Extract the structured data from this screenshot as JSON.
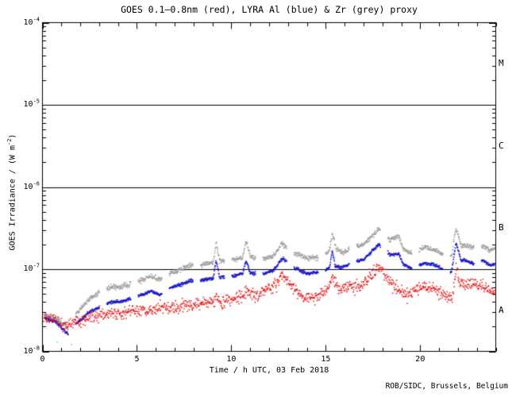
{
  "chart_data": {
    "type": "scatter",
    "title": "GOES 0.1–0.8nm (red), LYRA Al (blue) & Zr (grey) proxy",
    "xlabel": "Time / h UTC, 03 Feb 2018",
    "ylabel": {
      "pre": "GOES Irradiance / (W m",
      "sup": "-2",
      "post": ")"
    },
    "footer": "ROB/SIDC, Brussels, Belgium",
    "x_axis": {
      "range_h": [
        0,
        24
      ],
      "major_ticks": [
        0,
        5,
        10,
        15,
        20
      ],
      "minor_step_h": 1
    },
    "y_axis": {
      "scale": "log",
      "range_exp": [
        -8,
        -4
      ],
      "tick_exps": [
        -4,
        -5,
        -6,
        -7,
        -8
      ]
    },
    "hlines_wm2": [
      1e-05,
      1e-06,
      1e-07
    ],
    "flare_classes": [
      {
        "label": "M",
        "exp_mid": -4.5
      },
      {
        "label": "C",
        "exp_mid": -5.5
      },
      {
        "label": "B",
        "exp_mid": -6.5
      },
      {
        "label": "A",
        "exp_mid": -7.5
      }
    ],
    "lyra_segments": {
      "period_h": 1.653,
      "duration_h": 1.27,
      "offset_h": 0.1
    },
    "series": [
      {
        "name": "LYRA Zr proxy",
        "color": "#9c9c9c",
        "mode": "segmented",
        "step_h": 0.016,
        "noise_log": 0.022,
        "dot": 1.5,
        "anchors": [
          [
            0,
            2.8e-08
          ],
          [
            0.7,
            2.5e-08
          ],
          [
            1.35,
            1.9e-08
          ],
          [
            1.7,
            2.7e-08
          ],
          [
            2.5,
            4.4e-08
          ],
          [
            3.5,
            5.9e-08
          ],
          [
            4.3,
            6.2e-08
          ],
          [
            5.0,
            7e-08
          ],
          [
            5.75,
            8.2e-08
          ],
          [
            6.2,
            7.4e-08
          ],
          [
            6.7,
            8.8e-08
          ],
          [
            7.4,
            1e-07
          ],
          [
            7.8,
            1.1e-07
          ],
          [
            8.4,
            1.12e-07
          ],
          [
            9.05,
            1.2e-07
          ],
          [
            9.19,
            2.1e-07
          ],
          [
            9.38,
            1.25e-07
          ],
          [
            10.1,
            1.3e-07
          ],
          [
            10.6,
            1.35e-07
          ],
          [
            10.78,
            2.25e-07
          ],
          [
            11.0,
            1.42e-07
          ],
          [
            11.6,
            1.33e-07
          ],
          [
            12.2,
            1.45e-07
          ],
          [
            12.7,
            2.05e-07
          ],
          [
            13.3,
            1.6e-07
          ],
          [
            14.0,
            1.35e-07
          ],
          [
            14.8,
            1.42e-07
          ],
          [
            15.2,
            1.7e-07
          ],
          [
            15.35,
            2.8e-07
          ],
          [
            15.55,
            1.75e-07
          ],
          [
            15.9,
            1.6e-07
          ],
          [
            16.4,
            1.85e-07
          ],
          [
            17.0,
            2e-07
          ],
          [
            17.8,
            3.05e-07
          ],
          [
            18.4,
            2.3e-07
          ],
          [
            18.88,
            2.5e-07
          ],
          [
            19.1,
            1.76e-07
          ],
          [
            19.6,
            1.53e-07
          ],
          [
            20.2,
            1.85e-07
          ],
          [
            20.8,
            1.7e-07
          ],
          [
            21.4,
            1.44e-07
          ],
          [
            21.65,
            1.4e-07
          ],
          [
            21.9,
            3.2e-07
          ],
          [
            22.15,
            2e-07
          ],
          [
            22.8,
            1.8e-07
          ],
          [
            23.3,
            1.95e-07
          ],
          [
            23.7,
            1.7e-07
          ],
          [
            24,
            1.78e-07
          ]
        ]
      },
      {
        "name": "LYRA Al proxy",
        "color": "#1515cf",
        "mode": "segmented",
        "step_h": 0.016,
        "noise_log": 0.014,
        "dot": 1.6,
        "anchors": [
          [
            0,
            2.6e-08
          ],
          [
            0.7,
            2.3e-08
          ],
          [
            1.35,
            1.6e-08
          ],
          [
            1.7,
            2.1e-08
          ],
          [
            2.5,
            3e-08
          ],
          [
            3.5,
            3.9e-08
          ],
          [
            4.3,
            4.1e-08
          ],
          [
            5.0,
            4.6e-08
          ],
          [
            5.75,
            5.4e-08
          ],
          [
            6.2,
            4.9e-08
          ],
          [
            6.7,
            5.8e-08
          ],
          [
            7.4,
            6.6e-08
          ],
          [
            7.8,
            7.2e-08
          ],
          [
            8.4,
            7.3e-08
          ],
          [
            9.05,
            7.8e-08
          ],
          [
            9.19,
            1.28e-07
          ],
          [
            9.38,
            8e-08
          ],
          [
            10.1,
            8.3e-08
          ],
          [
            10.6,
            8.8e-08
          ],
          [
            10.78,
            1.28e-07
          ],
          [
            11.0,
            9e-08
          ],
          [
            11.6,
            8.7e-08
          ],
          [
            12.2,
            9.5e-08
          ],
          [
            12.7,
            1.35e-07
          ],
          [
            13.3,
            1.05e-07
          ],
          [
            14.0,
            8.8e-08
          ],
          [
            14.8,
            9.2e-08
          ],
          [
            15.2,
            1.05e-07
          ],
          [
            15.35,
            1.7e-07
          ],
          [
            15.5,
            1.08e-07
          ],
          [
            15.9,
            1.05e-07
          ],
          [
            16.4,
            1.2e-07
          ],
          [
            17.0,
            1.3e-07
          ],
          [
            17.8,
            2e-07
          ],
          [
            18.4,
            1.5e-07
          ],
          [
            18.88,
            1.55e-07
          ],
          [
            19.1,
            1.15e-07
          ],
          [
            19.6,
            1e-07
          ],
          [
            20.2,
            1.2e-07
          ],
          [
            20.8,
            1.12e-07
          ],
          [
            21.4,
            9.3e-08
          ],
          [
            21.65,
            9e-08
          ],
          [
            21.9,
            2.1e-07
          ],
          [
            22.15,
            1.3e-07
          ],
          [
            22.8,
            1.18e-07
          ],
          [
            23.3,
            1.28e-07
          ],
          [
            23.7,
            1.12e-07
          ],
          [
            24,
            1.16e-07
          ]
        ]
      },
      {
        "name": "GOES 0.1-0.8nm",
        "color": "#e81010",
        "mode": "continuous",
        "step_h": 0.02,
        "noise_log": 0.05,
        "dot": 1.5,
        "anchors": [
          [
            0,
            2.7e-08
          ],
          [
            0.7,
            2.4e-08
          ],
          [
            1.35,
            2e-08
          ],
          [
            1.7,
            2.3e-08
          ],
          [
            2.5,
            2.6e-08
          ],
          [
            3.5,
            2.8e-08
          ],
          [
            4.5,
            3e-08
          ],
          [
            5.5,
            3.2e-08
          ],
          [
            6.5,
            3.4e-08
          ],
          [
            7.5,
            3.6e-08
          ],
          [
            8.5,
            3.8e-08
          ],
          [
            9.2,
            4.3e-08
          ],
          [
            9.6,
            3.9e-08
          ],
          [
            10.2,
            4.4e-08
          ],
          [
            10.9,
            5.3e-08
          ],
          [
            11.3,
            4.7e-08
          ],
          [
            11.9,
            5.6e-08
          ],
          [
            12.35,
            6.4e-08
          ],
          [
            12.7,
            8.2e-08
          ],
          [
            13.1,
            7e-08
          ],
          [
            13.4,
            5.5e-08
          ],
          [
            13.8,
            4.6e-08
          ],
          [
            14.5,
            4.5e-08
          ],
          [
            15.0,
            5.3e-08
          ],
          [
            15.35,
            7.6e-08
          ],
          [
            15.8,
            5.4e-08
          ],
          [
            16.3,
            6.4e-08
          ],
          [
            16.8,
            6.1e-08
          ],
          [
            17.3,
            7.6e-08
          ],
          [
            17.8,
            1.07e-07
          ],
          [
            18.3,
            8e-08
          ],
          [
            18.8,
            5.7e-08
          ],
          [
            19.3,
            4.8e-08
          ],
          [
            19.8,
            5.7e-08
          ],
          [
            20.3,
            6.1e-08
          ],
          [
            20.8,
            5.8e-08
          ],
          [
            21.3,
            4.8e-08
          ],
          [
            21.7,
            4.5e-08
          ],
          [
            21.9,
            1.02e-07
          ],
          [
            22.1,
            6.8e-08
          ],
          [
            22.6,
            6.2e-08
          ],
          [
            23.0,
            6.8e-08
          ],
          [
            23.3,
            6.2e-08
          ],
          [
            23.7,
            5.6e-08
          ],
          [
            24,
            5e-08
          ]
        ]
      }
    ],
    "outliers": {
      "color": "#9c9c9c",
      "points": [
        [
          0.78,
          1.3e-08
        ],
        [
          1.55,
          1.2e-08
        ]
      ]
    }
  }
}
